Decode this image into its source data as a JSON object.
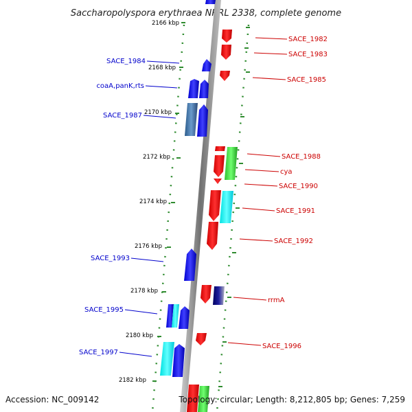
{
  "title": "Saccharopolyspora erythraea NRRL 2338, complete genome",
  "footer": {
    "accession": "Accession: NC_009142",
    "topology": "Topology: circular; Length: 8,212,805 bp; Genes: 7,259"
  },
  "kbp_labels": [
    "2166 kbp",
    "2168 kbp",
    "2170 kbp",
    "2172 kbp",
    "2174 kbp",
    "2176 kbp",
    "2178 kbp",
    "2180 kbp",
    "2182 kbp"
  ],
  "left_genes": [
    "SACE_1984",
    "coaA,panK,rts",
    "SACE_1987",
    "SACE_1993",
    "SACE_1995",
    "SACE_1997"
  ],
  "right_genes": [
    "SACE_1982",
    "SACE_1983",
    "SACE_1985",
    "SACE_1988",
    "cya",
    "SACE_1990",
    "SACE_1991",
    "SACE_1992",
    "rrmA",
    "SACE_1996"
  ],
  "colors": {
    "forward_strand": "#0000ff",
    "reverse_strand": "#ff0000",
    "left_label": "#0000cc",
    "right_label": "#cc0000",
    "tick": "#2e8b2e",
    "backbone": "#888888"
  }
}
